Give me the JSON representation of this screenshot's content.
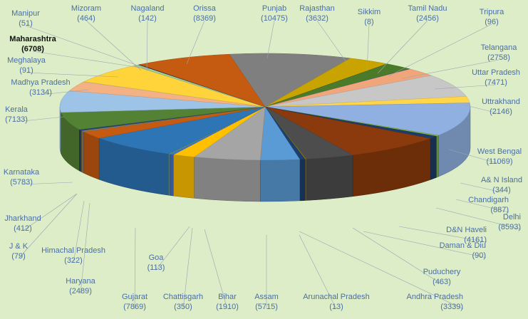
{
  "chart_data": {
    "type": "pie",
    "style": "3d",
    "background": "#dcedc8",
    "slices": [
      {
        "label": "Punjab",
        "value": 10475,
        "color": "#7f7f7f"
      },
      {
        "label": "Rajasthan",
        "value": 3632,
        "color": "#c9a400"
      },
      {
        "label": "Sikkim",
        "value": 8,
        "color": "#255e91"
      },
      {
        "label": "Tamil Nadu",
        "value": 2456,
        "color": "#4b7a28"
      },
      {
        "label": "Tripura",
        "value": 96,
        "color": "#2a5f93"
      },
      {
        "label": "Telangana",
        "value": 2758,
        "color": "#f0a57a"
      },
      {
        "label": "Uttar Pradesh",
        "value": 7471,
        "color": "#c7c7c7"
      },
      {
        "label": "Uttrakhand",
        "value": 2146,
        "color": "#ffd54a"
      },
      {
        "label": "West Bengal",
        "value": 11069,
        "color": "#8fb0e0"
      },
      {
        "label": "A& N Island",
        "value": 344,
        "color": "#7cb342"
      },
      {
        "label": "Chandigarh",
        "value": 887,
        "color": "#1f3b66"
      },
      {
        "label": "Delhi",
        "value": 8593,
        "color": "#8a3a0c"
      },
      {
        "label": "D&N Haveli",
        "value": 4161,
        "color": "#4d4d4d"
      },
      {
        "label": "Daman & Diu",
        "value": 90,
        "color": "#9e7a00"
      },
      {
        "label": "Puduchery",
        "value": 463,
        "color": "#1d3f6e"
      },
      {
        "label": "Andhra Pradesh",
        "value": 3339,
        "color": "#5b9bd5"
      },
      {
        "label": "Arunachal Pradesh",
        "value": 13,
        "color": "#ed7d31"
      },
      {
        "label": "Assam",
        "value": 5715,
        "color": "#a5a5a5"
      },
      {
        "label": "Bihar",
        "value": 1910,
        "color": "#ffc000"
      },
      {
        "label": "Chattisgarh",
        "value": 350,
        "color": "#4472c4"
      },
      {
        "label": "Goa",
        "value": 113,
        "color": "#70ad47"
      },
      {
        "label": "Gujarat",
        "value": 7869,
        "color": "#2e75b6"
      },
      {
        "label": "Haryana",
        "value": 2489,
        "color": "#c55a11"
      },
      {
        "label": "Himachal Pradesh",
        "value": 322,
        "color": "#7f7f7f"
      },
      {
        "label": "J & K",
        "value": 79,
        "color": "#bf9000"
      },
      {
        "label": "Jharkhand",
        "value": 412,
        "color": "#264478"
      },
      {
        "label": "Karnataka",
        "value": 5783,
        "color": "#548235"
      },
      {
        "label": "Kerala",
        "value": 7133,
        "color": "#9dc3e6"
      },
      {
        "label": "Madhya Pradesh",
        "value": 3134,
        "color": "#f4b183"
      },
      {
        "label": "Meghalaya",
        "value": 91,
        "color": "#c9c9c9"
      },
      {
        "label": "Maharashtra",
        "value": 6708,
        "color": "#ffd43a"
      },
      {
        "label": "Manipur",
        "value": 51,
        "color": "#8faadc"
      },
      {
        "label": "Mizoram",
        "value": 464,
        "color": "#a9d18e"
      },
      {
        "label": "Nagaland",
        "value": 142,
        "color": "#203864"
      },
      {
        "label": "Orissa",
        "value": 8369,
        "color": "#c55a11"
      }
    ],
    "labels": [
      {
        "name": "Manipur",
        "value": "(51)"
      },
      {
        "name": "Mizoram",
        "value": "(464)"
      },
      {
        "name": "Nagaland",
        "value": "(142)"
      },
      {
        "name": "Orissa",
        "value": "(8369)"
      },
      {
        "name": "Punjab",
        "value": "(10475)"
      },
      {
        "name": "Rajasthan",
        "value": "(3632)"
      },
      {
        "name": "Sikkim",
        "value": "(8)"
      },
      {
        "name": "Tamil Nadu",
        "value": "(2456)"
      },
      {
        "name": "Tripura",
        "value": "(96)"
      },
      {
        "name": "Maharashtra",
        "value": "(6708)",
        "highlight": true
      },
      {
        "name": "Telangana",
        "value": "(2758)"
      },
      {
        "name": "Meghalaya",
        "value": "(91)"
      },
      {
        "name": "Madhya  Pradesh",
        "value": "(3134)"
      },
      {
        "name": "Uttar Pradesh",
        "value": "(7471)"
      },
      {
        "name": "Uttrakhand",
        "value": "(2146)"
      },
      {
        "name": "Kerala",
        "value": "(7133)"
      },
      {
        "name": "West Bengal",
        "value": "(11069)"
      },
      {
        "name": "A& N Island",
        "value": "(344)"
      },
      {
        "name": "Karnataka",
        "value": "(5783)"
      },
      {
        "name": "Chandigarh",
        "value": "(887)"
      },
      {
        "name": "Delhi",
        "value": "(8593)"
      },
      {
        "name": "Jharkhand",
        "value": "(412)"
      },
      {
        "name": "D&N Haveli",
        "value": "(4161)"
      },
      {
        "name": "J & K",
        "value": "(79)"
      },
      {
        "name": "Himachal  Pradesh",
        "value": "(322)"
      },
      {
        "name": "Daman  & Diu",
        "value": "(90)"
      },
      {
        "name": "Goa",
        "value": "(113)"
      },
      {
        "name": "Puduchery",
        "value": "(463)"
      },
      {
        "name": "Haryana",
        "value": "(2489)"
      },
      {
        "name": "Andhra Pradesh",
        "value": "(3339)"
      },
      {
        "name": "Gujarat",
        "value": "(7869)"
      },
      {
        "name": "Chattisgarh",
        "value": "(350)"
      },
      {
        "name": "Bihar",
        "value": "(1910)"
      },
      {
        "name": "Assam",
        "value": "(5715)"
      },
      {
        "name": "Arunachal Pradesh",
        "value": "(13)"
      }
    ]
  }
}
